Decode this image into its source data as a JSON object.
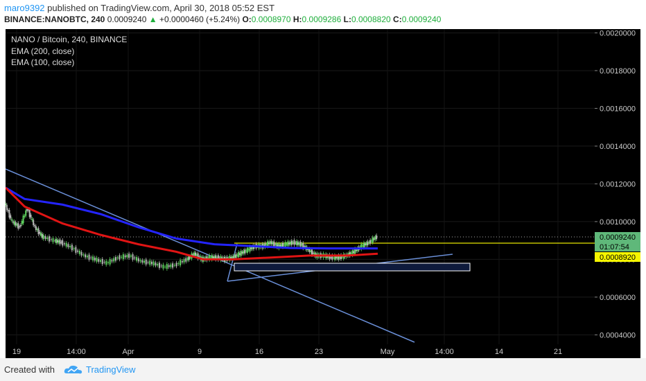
{
  "header": {
    "user": "maro9392",
    "published": "published on TradingView.com, April 30, 2018 05:52 EST",
    "symbol": "BINANCE:NANOBTC, 240",
    "price": "0.0009240",
    "change": "+0.0000460 (+5.24%)",
    "o_label": "O:",
    "o_value": "0.0008970",
    "h_label": "H:",
    "h_value": "0.0009286",
    "l_label": "L:",
    "l_value": "0.0008820",
    "c_label": "C:",
    "c_value": "0.0009240"
  },
  "legend": {
    "title": "NANO / Bitcoin, 240, BINANCE",
    "ema200": "EMA (200, close)",
    "ema100": "EMA (100, close)"
  },
  "colors": {
    "background": "#000000",
    "ema200": "#2424ff",
    "ema100": "#e01414",
    "trendline": "#6a8fd8",
    "yellow_line": "#e6e600",
    "candle_up": "#5fd35f",
    "candle_down": "#b8b8b8"
  },
  "footer": {
    "created_with": "Created with",
    "brand": "TradingView"
  },
  "chart_data": {
    "type": "line",
    "title": "NANO / Bitcoin, 240, BINANCE",
    "x_tick_labels": [
      "19",
      "14:00",
      "Apr",
      "9",
      "16",
      "23",
      "May",
      "14:00",
      "14",
      "21"
    ],
    "y_tick_labels": [
      "0.0020000",
      "0.0018000",
      "0.0016000",
      "0.0014000",
      "0.0012000",
      "0.0010000",
      "0.0008000",
      "0.0006000",
      "0.0004000"
    ],
    "ylim": [
      0.00035,
      0.00202
    ],
    "price_tags": [
      {
        "label": "0.0009240",
        "color": "#5fb87a"
      },
      {
        "label": "01:07:54",
        "color": "#5fb87a"
      },
      {
        "label": "0.0008920",
        "color": "#f5f500"
      }
    ],
    "series": [
      {
        "name": "EMA (200, close)",
        "color": "#2424ff",
        "points": [
          [
            0,
            0.00118
          ],
          [
            0.05,
            0.00112
          ],
          [
            0.15,
            0.00109
          ],
          [
            0.25,
            0.00104
          ],
          [
            0.35,
            0.00097
          ],
          [
            0.45,
            0.00091
          ],
          [
            0.55,
            0.00088
          ],
          [
            0.65,
            0.00087
          ],
          [
            0.75,
            0.00086
          ],
          [
            0.85,
            0.000858
          ],
          [
            0.98,
            0.000858
          ]
        ]
      },
      {
        "name": "EMA (100, close)",
        "color": "#e01414",
        "points": [
          [
            0,
            0.00118
          ],
          [
            0.05,
            0.00108
          ],
          [
            0.15,
            0.00099
          ],
          [
            0.25,
            0.00093
          ],
          [
            0.35,
            0.00088
          ],
          [
            0.45,
            0.00084
          ],
          [
            0.52,
            0.0008
          ],
          [
            0.6,
            0.0008
          ],
          [
            0.7,
            0.00081
          ],
          [
            0.8,
            0.00082
          ],
          [
            0.9,
            0.00082
          ],
          [
            0.98,
            0.00083
          ]
        ]
      },
      {
        "name": "Close",
        "points": [
          [
            0,
            0.0011
          ],
          [
            0.02,
            0.001
          ],
          [
            0.04,
            0.00097
          ],
          [
            0.06,
            0.00107
          ],
          [
            0.08,
            0.00097
          ],
          [
            0.1,
            0.00092
          ],
          [
            0.13,
            0.0009
          ],
          [
            0.15,
            0.00089
          ],
          [
            0.18,
            0.00086
          ],
          [
            0.21,
            0.00082
          ],
          [
            0.24,
            0.0008
          ],
          [
            0.27,
            0.00078
          ],
          [
            0.3,
            0.00081
          ],
          [
            0.33,
            0.00082
          ],
          [
            0.36,
            0.00079
          ],
          [
            0.39,
            0.00078
          ],
          [
            0.42,
            0.00076
          ],
          [
            0.45,
            0.00077
          ],
          [
            0.48,
            0.0008
          ],
          [
            0.5,
            0.00083
          ],
          [
            0.52,
            0.0008
          ],
          [
            0.54,
            0.00081
          ],
          [
            0.56,
            0.00081
          ],
          [
            0.58,
            0.0008
          ],
          [
            0.6,
            0.00081
          ],
          [
            0.62,
            0.00083
          ],
          [
            0.64,
            0.00085
          ],
          [
            0.66,
            0.00087
          ],
          [
            0.68,
            0.00087
          ],
          [
            0.7,
            0.00089
          ],
          [
            0.72,
            0.00087
          ],
          [
            0.74,
            0.00088
          ],
          [
            0.76,
            0.00089
          ],
          [
            0.78,
            0.00088
          ],
          [
            0.8,
            0.00085
          ],
          [
            0.82,
            0.00082
          ],
          [
            0.84,
            0.00082
          ],
          [
            0.86,
            0.00081
          ],
          [
            0.88,
            0.00081
          ],
          [
            0.9,
            0.00082
          ],
          [
            0.92,
            0.00084
          ],
          [
            0.94,
            0.00087
          ],
          [
            0.96,
            0.00089
          ],
          [
            0.98,
            0.00092
          ]
        ]
      }
    ]
  }
}
